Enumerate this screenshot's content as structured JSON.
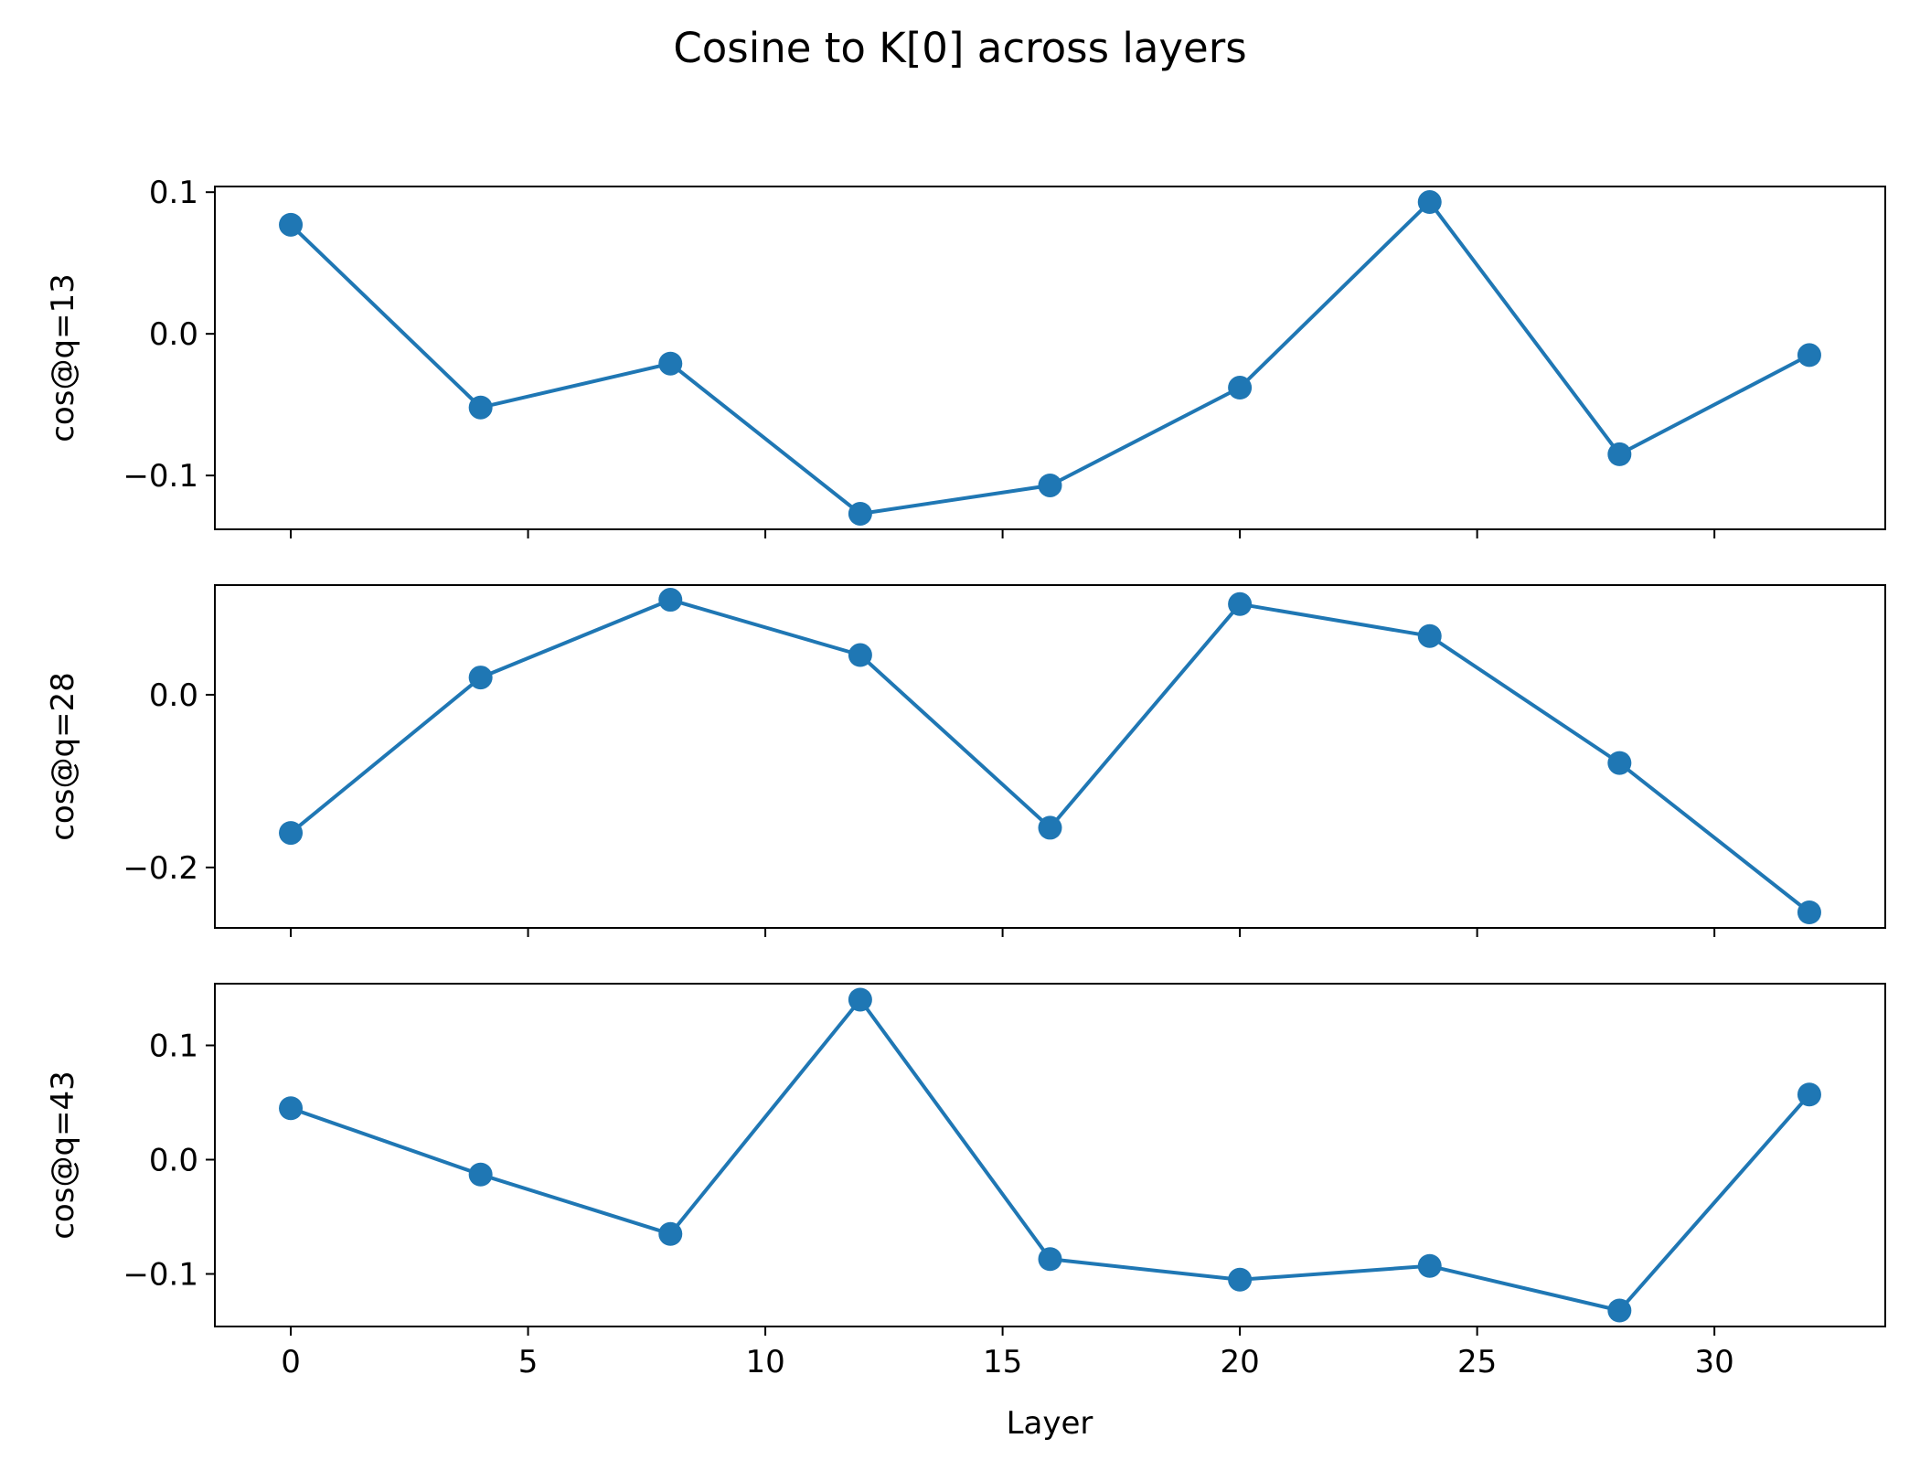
{
  "figure": {
    "title": "Cosine to K[0] across layers",
    "xlabel": "Layer"
  },
  "colors": {
    "series": "#1f77b4",
    "axes": "#000000",
    "background": "#ffffff"
  },
  "chart_data": [
    {
      "type": "line",
      "title": "",
      "xlabel": "",
      "ylabel": "cos@q=13",
      "x": [
        0,
        4,
        8,
        12,
        16,
        20,
        24,
        28,
        32
      ],
      "series": [
        {
          "values": [
            0.077,
            -0.052,
            -0.021,
            -0.127,
            -0.107,
            -0.038,
            0.093,
            -0.085,
            -0.015
          ]
        }
      ],
      "xlim": [
        -1.6,
        33.6
      ],
      "ylim": [
        -0.138,
        0.104
      ],
      "xticks": [
        0,
        5,
        10,
        15,
        20,
        25,
        30
      ],
      "yticks": [
        -0.1,
        0.0,
        0.1
      ],
      "ytick_labels": [
        "−0.1",
        "0.0",
        "0.1"
      ],
      "xtick_labels_visible": false,
      "markers": "circle",
      "grid": false,
      "legend": "none"
    },
    {
      "type": "line",
      "title": "",
      "xlabel": "",
      "ylabel": "cos@q=28",
      "x": [
        0,
        4,
        8,
        12,
        16,
        20,
        24,
        28,
        32
      ],
      "series": [
        {
          "values": [
            -0.16,
            0.02,
            0.11,
            0.046,
            -0.154,
            0.105,
            0.068,
            -0.079,
            -0.252
          ]
        }
      ],
      "xlim": [
        -1.6,
        33.6
      ],
      "ylim": [
        -0.27,
        0.127
      ],
      "xticks": [
        0,
        5,
        10,
        15,
        20,
        25,
        30
      ],
      "yticks": [
        -0.2,
        0.0
      ],
      "ytick_labels": [
        "−0.2",
        "0.0"
      ],
      "xtick_labels_visible": false,
      "markers": "circle",
      "grid": false,
      "legend": "none"
    },
    {
      "type": "line",
      "title": "",
      "xlabel": "Layer",
      "ylabel": "cos@q=43",
      "x": [
        0,
        4,
        8,
        12,
        16,
        20,
        24,
        28,
        32
      ],
      "series": [
        {
          "values": [
            0.045,
            -0.013,
            -0.065,
            0.14,
            -0.087,
            -0.105,
            -0.093,
            -0.132,
            0.057
          ]
        }
      ],
      "xlim": [
        -1.6,
        33.6
      ],
      "ylim": [
        -0.146,
        0.154
      ],
      "xticks": [
        0,
        5,
        10,
        15,
        20,
        25,
        30
      ],
      "yticks": [
        -0.1,
        0.0,
        0.1
      ],
      "ytick_labels": [
        "−0.1",
        "0.0",
        "0.1"
      ],
      "xtick_labels_visible": true,
      "markers": "circle",
      "grid": false,
      "legend": "none"
    }
  ]
}
